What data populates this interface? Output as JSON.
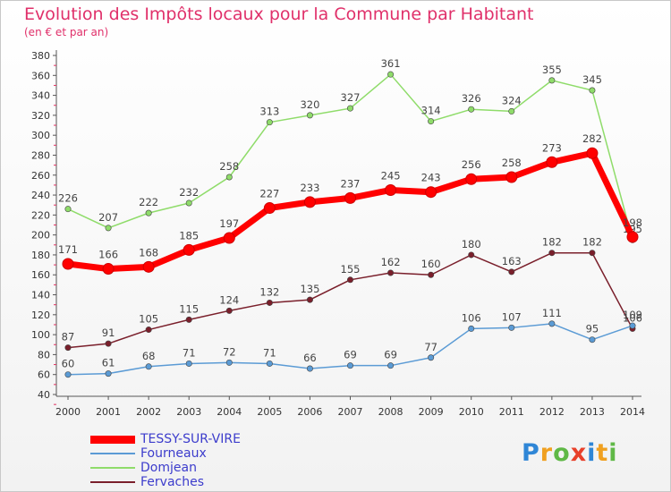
{
  "title": "Evolution des Impôts locaux pour la Commune par Habitant",
  "subtitle": "(en € et par an)",
  "logo": "Proxiti",
  "chart_data": {
    "type": "line",
    "x": [
      "2000",
      "2001",
      "2002",
      "2003",
      "2004",
      "2005",
      "2006",
      "2007",
      "2008",
      "2009",
      "2010",
      "2011",
      "2012",
      "2013",
      "2014"
    ],
    "ylim": [
      40,
      380
    ],
    "yticks": [
      40,
      60,
      80,
      100,
      120,
      140,
      160,
      180,
      200,
      220,
      240,
      260,
      280,
      300,
      320,
      340,
      360,
      380
    ],
    "grid": false,
    "legend_position": "bottom-left",
    "series": [
      {
        "name": "TESSY-SUR-VIRE",
        "color": "#ff0000",
        "width": 7,
        "values": [
          171,
          166,
          168,
          185,
          197,
          227,
          233,
          237,
          245,
          243,
          256,
          258,
          273,
          282,
          198
        ]
      },
      {
        "name": "Fourneaux",
        "color": "#5b9bd5",
        "width": 1.5,
        "values": [
          60,
          61,
          68,
          71,
          72,
          71,
          66,
          69,
          69,
          77,
          106,
          107,
          111,
          95,
          109
        ]
      },
      {
        "name": "Domjean",
        "color": "#8fdc6a",
        "width": 1.5,
        "values": [
          226,
          207,
          222,
          232,
          258,
          313,
          320,
          327,
          361,
          314,
          326,
          324,
          355,
          345,
          195
        ]
      },
      {
        "name": "Fervaches",
        "color": "#7a1f2b",
        "width": 1.5,
        "values": [
          87,
          91,
          105,
          115,
          124,
          132,
          135,
          155,
          162,
          160,
          180,
          163,
          182,
          182,
          106
        ]
      }
    ]
  }
}
